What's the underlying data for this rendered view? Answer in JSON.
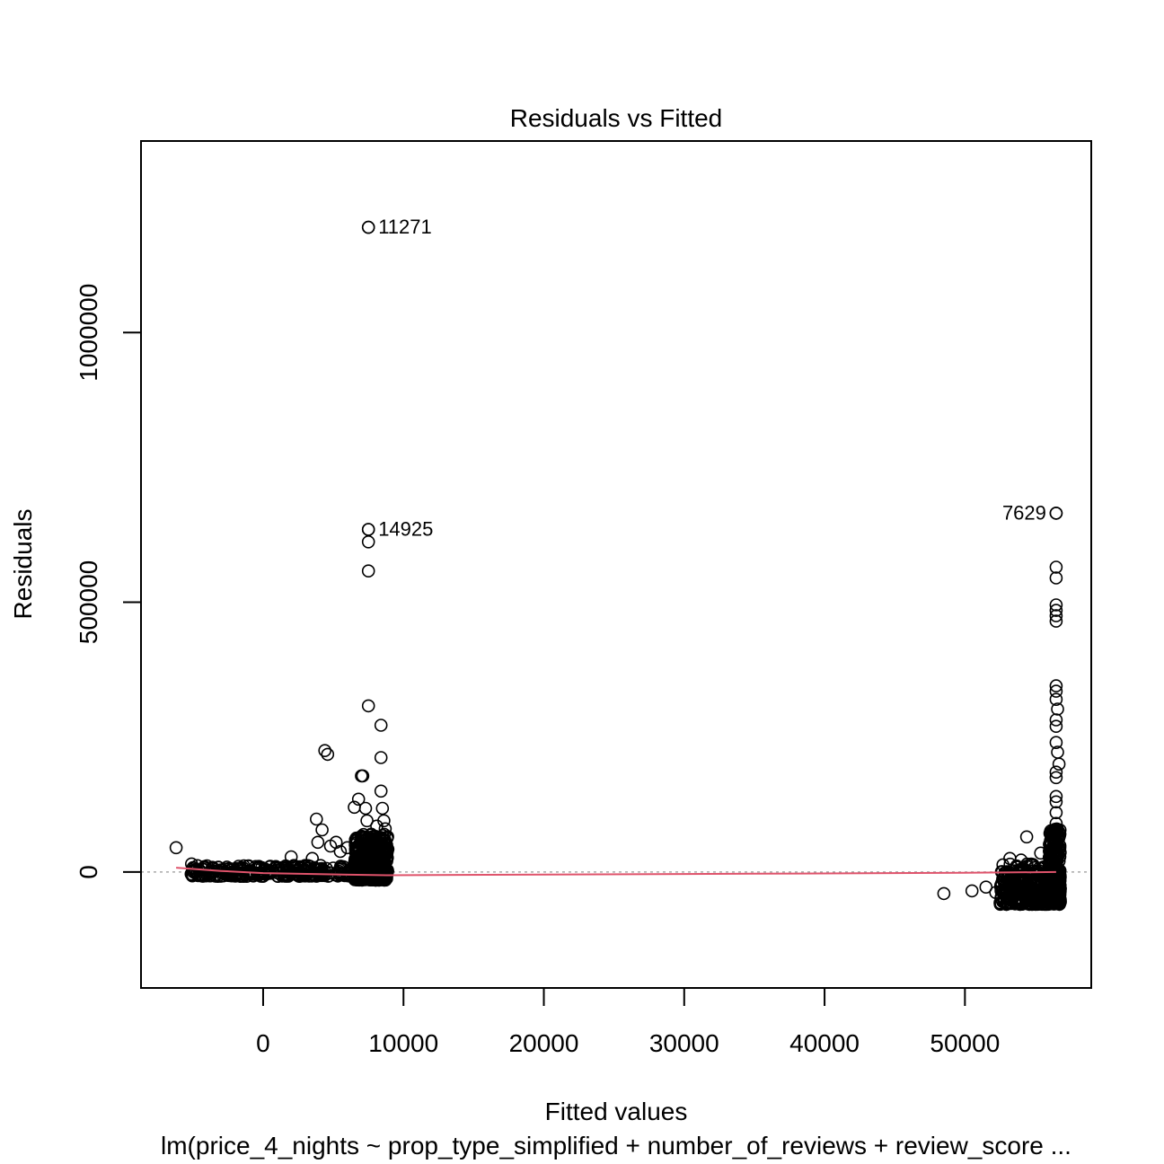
{
  "chart_data": {
    "type": "scatter",
    "title": "Residuals vs Fitted",
    "xlabel": "Fitted values",
    "ylabel": "Residuals",
    "subtitle": "lm(price_4_nights ~ prop_type_simplified + number_of_reviews + review_score ...",
    "xlim": [
      -8700,
      59000
    ],
    "ylim": [
      -215000,
      1355000
    ],
    "x_ticks": [
      0,
      10000,
      20000,
      30000,
      40000,
      50000
    ],
    "y_ticks": [
      0,
      500000,
      1000000
    ],
    "x_tick_labels": [
      "0",
      "10000",
      "20000",
      "30000",
      "40000",
      "50000"
    ],
    "y_tick_labels": [
      "0",
      "500000",
      "1000000"
    ],
    "grid": false,
    "zero_line": {
      "y": 0,
      "color": "#aaaaaa",
      "style": "dotted"
    },
    "smooth_color": "#df536b",
    "smooth_line": [
      [
        -6200,
        8000
      ],
      [
        -3000,
        2000
      ],
      [
        0,
        -2000
      ],
      [
        4000,
        -4000
      ],
      [
        8800,
        -6000
      ],
      [
        20000,
        -4800
      ],
      [
        35000,
        -3200
      ],
      [
        50000,
        -1600
      ],
      [
        56500,
        0
      ]
    ],
    "labeled_points": [
      {
        "x": 7500,
        "y": 1195000,
        "label": "11271",
        "side": "right"
      },
      {
        "x": 7500,
        "y": 635000,
        "label": "14925",
        "side": "right"
      },
      {
        "x": 56500,
        "y": 665000,
        "label": "7629",
        "side": "left"
      }
    ],
    "points": [
      [
        -6200,
        45000
      ],
      [
        -5100,
        15000
      ],
      [
        -5000,
        8000
      ],
      [
        -4800,
        5000
      ],
      [
        -4500,
        3000
      ],
      [
        -4000,
        6000
      ],
      [
        -3500,
        2000
      ],
      [
        -3000,
        4000
      ],
      [
        -2500,
        1000
      ],
      [
        -2000,
        3000
      ],
      [
        -1500,
        2000
      ],
      [
        -1000,
        0
      ],
      [
        -500,
        4000
      ],
      [
        0,
        2000
      ],
      [
        500,
        1000
      ],
      [
        1000,
        3000
      ],
      [
        1500,
        8000
      ],
      [
        2000,
        28000
      ],
      [
        2500,
        5000
      ],
      [
        3000,
        12000
      ],
      [
        3500,
        25000
      ],
      [
        3800,
        98000
      ],
      [
        3900,
        55000
      ],
      [
        4200,
        78000
      ],
      [
        4400,
        225000
      ],
      [
        4600,
        218000
      ],
      [
        4800,
        48000
      ],
      [
        5200,
        55000
      ],
      [
        5500,
        38000
      ],
      [
        6000,
        45000
      ],
      [
        6500,
        120000
      ],
      [
        6800,
        135000
      ],
      [
        7000,
        178000
      ],
      [
        7100,
        178000
      ],
      [
        7300,
        118000
      ],
      [
        7400,
        95000
      ],
      [
        7500,
        1195000
      ],
      [
        7500,
        635000
      ],
      [
        7500,
        612000
      ],
      [
        7500,
        558000
      ],
      [
        7500,
        308000
      ],
      [
        7700,
        70000
      ],
      [
        7900,
        60000
      ],
      [
        8100,
        85000
      ],
      [
        8400,
        272000
      ],
      [
        8400,
        212000
      ],
      [
        8400,
        150000
      ],
      [
        8500,
        118000
      ],
      [
        8600,
        95000
      ],
      [
        8700,
        80000
      ],
      [
        8800,
        50000
      ],
      [
        7200,
        65000
      ],
      [
        7600,
        40000
      ],
      [
        8000,
        30000
      ],
      [
        8300,
        20000
      ],
      [
        6600,
        25000
      ],
      [
        48500,
        -40000
      ],
      [
        50500,
        -35000
      ],
      [
        51500,
        -28000
      ],
      [
        52200,
        -38000
      ],
      [
        52600,
        -45000
      ],
      [
        53000,
        -32000
      ],
      [
        53200,
        25000
      ],
      [
        53600,
        -50000
      ],
      [
        54000,
        22000
      ],
      [
        54400,
        65000
      ],
      [
        54600,
        -50000
      ],
      [
        54800,
        12000
      ],
      [
        55100,
        -48000
      ],
      [
        55400,
        35000
      ],
      [
        55700,
        -52000
      ],
      [
        56000,
        -50000
      ],
      [
        56200,
        20000
      ],
      [
        56500,
        665000
      ],
      [
        56500,
        565000
      ],
      [
        56500,
        545000
      ],
      [
        56500,
        495000
      ],
      [
        56500,
        485000
      ],
      [
        56500,
        475000
      ],
      [
        56500,
        465000
      ],
      [
        56500,
        345000
      ],
      [
        56500,
        335000
      ],
      [
        56500,
        320000
      ],
      [
        56600,
        302000
      ],
      [
        56500,
        282000
      ],
      [
        56500,
        270000
      ],
      [
        56500,
        240000
      ],
      [
        56600,
        222000
      ],
      [
        56700,
        200000
      ],
      [
        56500,
        185000
      ],
      [
        56500,
        175000
      ],
      [
        56500,
        140000
      ],
      [
        56500,
        130000
      ],
      [
        56500,
        110000
      ],
      [
        56500,
        90000
      ],
      [
        56500,
        75000
      ],
      [
        56500,
        60000
      ],
      [
        56500,
        45000
      ],
      [
        56300,
        30000
      ],
      [
        56000,
        15000
      ],
      [
        55800,
        -20000
      ],
      [
        56400,
        -35000
      ],
      [
        56600,
        -45000
      ],
      [
        55500,
        -30000
      ],
      [
        55000,
        -25000
      ],
      [
        54500,
        -40000
      ]
    ],
    "dense_clusters": [
      {
        "x_from": -5200,
        "x_to": 6500,
        "y_from": -8000,
        "y_to": 12000,
        "count": 260
      },
      {
        "x_from": 6500,
        "x_to": 8900,
        "y_from": -15000,
        "y_to": 70000,
        "count": 420
      },
      {
        "x_from": 52500,
        "x_to": 56800,
        "y_from": -60000,
        "y_to": 15000,
        "count": 360
      },
      {
        "x_from": 56000,
        "x_to": 56800,
        "y_from": -55000,
        "y_to": 80000,
        "count": 200
      }
    ]
  }
}
